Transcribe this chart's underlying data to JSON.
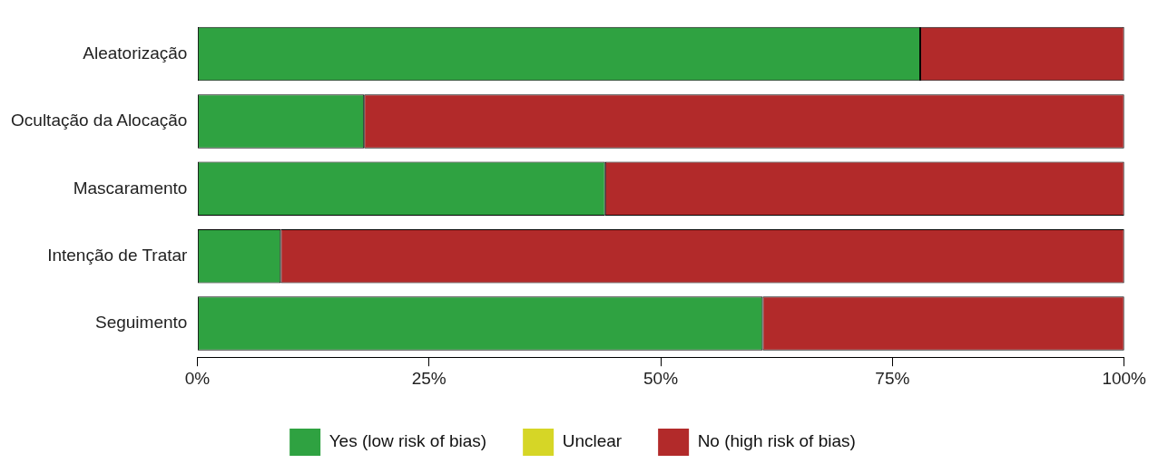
{
  "chart_data": {
    "type": "bar",
    "orientation": "horizontal",
    "stacked": true,
    "categories": [
      "Aleatorização",
      "Ocultação da Alocação",
      "Mascaramento",
      "Intenção de Tratar",
      "Seguimento"
    ],
    "series": [
      {
        "name": "Yes (low risk of bias)",
        "color": "#2fa241",
        "values": [
          78,
          18,
          44,
          9,
          61
        ]
      },
      {
        "name": "Unclear",
        "color": "#d6d626",
        "values": [
          0,
          0,
          0,
          0,
          0
        ]
      },
      {
        "name": "No (high risk of bias)",
        "color": "#b22a2a",
        "values": [
          22,
          82,
          56,
          91,
          39
        ]
      }
    ],
    "xlim": [
      0,
      100
    ],
    "xticks": [
      {
        "value": 0,
        "label": "0%"
      },
      {
        "value": 25,
        "label": "25%"
      },
      {
        "value": 50,
        "label": "50%"
      },
      {
        "value": 75,
        "label": "75%"
      },
      {
        "value": 100,
        "label": "100%"
      }
    ],
    "legend": "bottom"
  }
}
